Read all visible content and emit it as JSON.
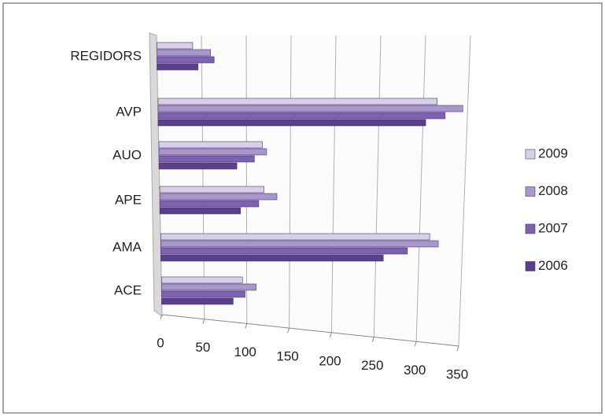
{
  "chart_data": {
    "type": "bar",
    "orientation": "horizontal",
    "categories": [
      "ACE",
      "AMA",
      "APE",
      "AUO",
      "AVP",
      "REGIDORS"
    ],
    "series": [
      {
        "name": "2009",
        "color": "#d8d0e8",
        "values": [
          95,
          313,
          120,
          118,
          316,
          40
        ]
      },
      {
        "name": "2008",
        "color": "#a897cc",
        "values": [
          111,
          323,
          135,
          123,
          345,
          60
        ]
      },
      {
        "name": "2007",
        "color": "#7e62b2",
        "values": [
          98,
          287,
          114,
          109,
          325,
          64
        ]
      },
      {
        "name": "2006",
        "color": "#5b3f8c",
        "values": [
          84,
          259,
          93,
          89,
          303,
          46
        ]
      }
    ],
    "xlim": [
      0,
      350
    ],
    "xticks": [
      0,
      50,
      100,
      150,
      200,
      250,
      300,
      350
    ],
    "grid": true,
    "legend": "right"
  }
}
